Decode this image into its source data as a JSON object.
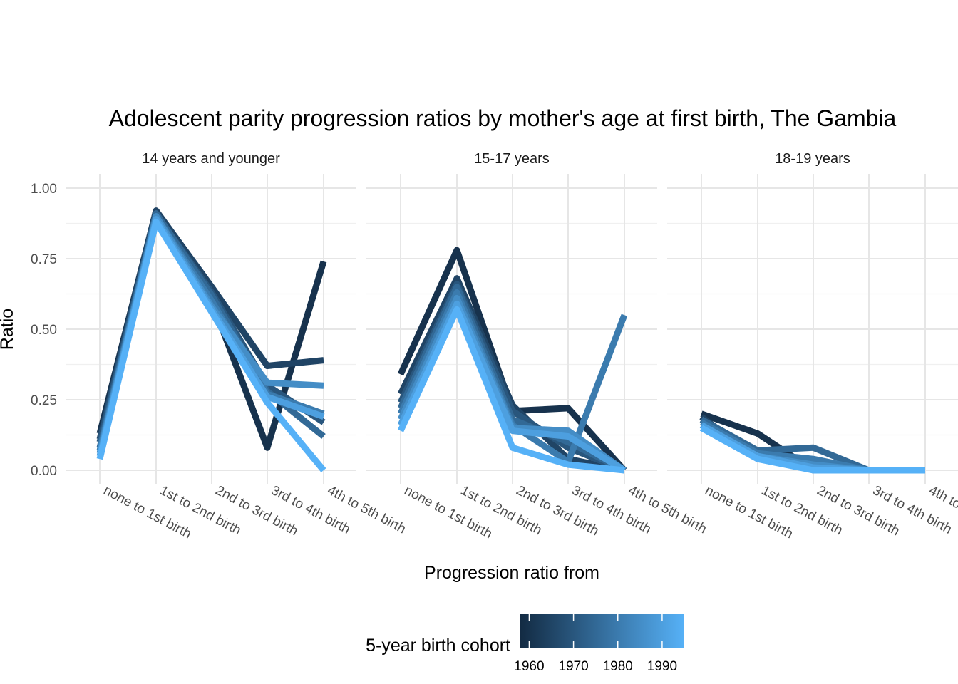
{
  "chart_data": {
    "type": "line",
    "title": "Adolescent parity progression ratios by mother's age at first birth,  The Gambia",
    "xlabel": "Progression ratio from",
    "ylabel": "Ratio",
    "ylim": [
      0,
      1
    ],
    "y_ticks": [
      "0.00",
      "0.25",
      "0.50",
      "0.75",
      "1.00"
    ],
    "y_tick_values": [
      0,
      0.25,
      0.5,
      0.75,
      1
    ],
    "categories": [
      "none to 1st birth",
      "1st to 2nd birth",
      "2nd to 3rd birth",
      "3rd to 4th birth",
      "4th to 5th birth"
    ],
    "grid": true,
    "legend": {
      "title": "5-year birth cohort",
      "position": "bottom",
      "type": "colorbar",
      "range": [
        1958,
        1995
      ],
      "ticks": [
        1960,
        1970,
        1980,
        1990
      ],
      "tick_labels": [
        "1960",
        "1970",
        "1980",
        "1990"
      ],
      "low_color": "#132b43",
      "high_color": "#56b1f7"
    },
    "facets": [
      {
        "label": "14 years and younger",
        "series": [
          {
            "cohort": 1960,
            "values": [
              0.13,
              0.92,
              0.6,
              0.08,
              0.74
            ]
          },
          {
            "cohort": 1965,
            "values": [
              0.11,
              0.92,
              0.65,
              0.37,
              0.39
            ]
          },
          {
            "cohort": 1970,
            "values": [
              0.1,
              0.91,
              0.63,
              0.3,
              0.17
            ]
          },
          {
            "cohort": 1975,
            "values": [
              0.08,
              0.91,
              0.62,
              0.28,
              0.12
            ]
          },
          {
            "cohort": 1980,
            "values": [
              0.07,
              0.9,
              0.6,
              0.27,
              0.2
            ]
          },
          {
            "cohort": 1985,
            "values": [
              0.06,
              0.9,
              0.58,
              0.31,
              0.3
            ]
          },
          {
            "cohort": 1990,
            "values": [
              0.05,
              0.89,
              0.57,
              0.26,
              0.19
            ]
          },
          {
            "cohort": 1995,
            "values": [
              0.04,
              0.88,
              0.56,
              0.24,
              0.0
            ]
          }
        ]
      },
      {
        "label": "15-17 years",
        "series": [
          {
            "cohort": 1960,
            "values": [
              0.34,
              0.78,
              0.21,
              0.22,
              0.0
            ]
          },
          {
            "cohort": 1965,
            "values": [
              0.27,
              0.68,
              0.23,
              0.04,
              0.0
            ]
          },
          {
            "cohort": 1970,
            "values": [
              0.24,
              0.66,
              0.21,
              0.08,
              0.0
            ]
          },
          {
            "cohort": 1975,
            "values": [
              0.22,
              0.65,
              0.18,
              0.1,
              0.0
            ]
          },
          {
            "cohort": 1980,
            "values": [
              0.2,
              0.63,
              0.16,
              0.03,
              0.55
            ]
          },
          {
            "cohort": 1985,
            "values": [
              0.18,
              0.61,
              0.15,
              0.14,
              0.0
            ]
          },
          {
            "cohort": 1990,
            "values": [
              0.16,
              0.59,
              0.14,
              0.12,
              0.0
            ]
          },
          {
            "cohort": 1995,
            "values": [
              0.14,
              0.57,
              0.08,
              0.02,
              0.0
            ]
          }
        ]
      },
      {
        "label": "18-19 years",
        "series": [
          {
            "cohort": 1960,
            "values": [
              0.2,
              0.13,
              0.0,
              0.0,
              0.0
            ]
          },
          {
            "cohort": 1965,
            "values": [
              0.19,
              0.04,
              0.02,
              0.0,
              0.0
            ]
          },
          {
            "cohort": 1970,
            "values": [
              0.18,
              0.06,
              0.03,
              0.0,
              0.0
            ]
          },
          {
            "cohort": 1975,
            "values": [
              0.18,
              0.07,
              0.08,
              0.0,
              0.0
            ]
          },
          {
            "cohort": 1980,
            "values": [
              0.17,
              0.06,
              0.04,
              0.0,
              0.0
            ]
          },
          {
            "cohort": 1985,
            "values": [
              0.16,
              0.05,
              0.02,
              0.0,
              0.0
            ]
          },
          {
            "cohort": 1990,
            "values": [
              0.16,
              0.05,
              0.01,
              0.0,
              0.0
            ]
          },
          {
            "cohort": 1995,
            "values": [
              0.15,
              0.04,
              0.0,
              0.0,
              0.0
            ]
          }
        ]
      }
    ]
  }
}
